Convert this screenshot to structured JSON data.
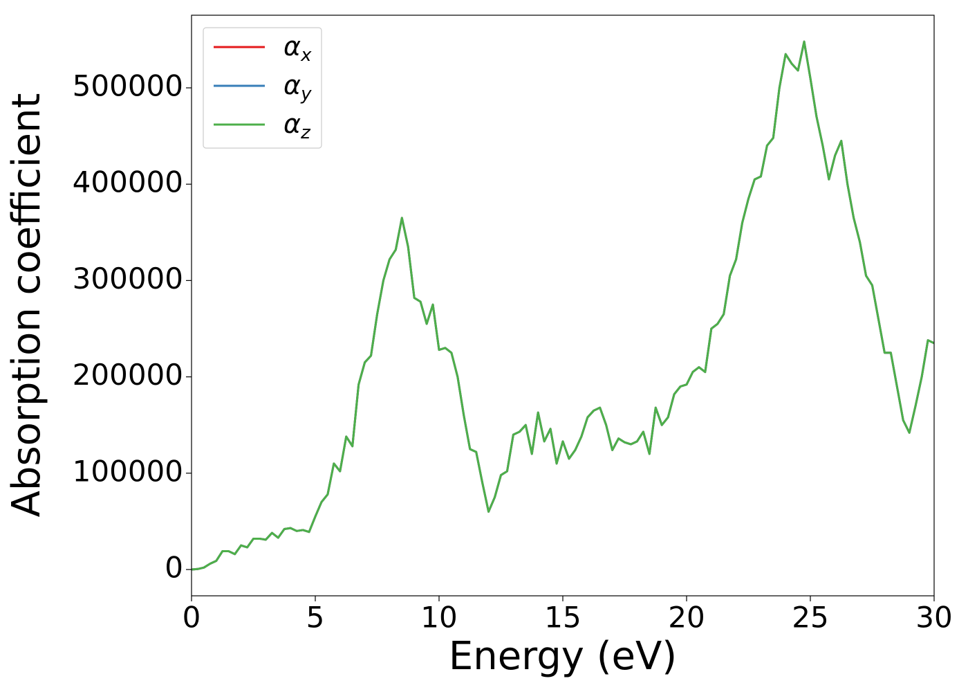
{
  "chart_data": {
    "type": "line",
    "xlabel": "Energy (eV)",
    "ylabel": "Absorption coefficient",
    "x": [
      0,
      0.25,
      0.5,
      0.75,
      1,
      1.25,
      1.5,
      1.75,
      2,
      2.25,
      2.5,
      2.75,
      3,
      3.25,
      3.5,
      3.75,
      4,
      4.25,
      4.5,
      4.75,
      5,
      5.25,
      5.5,
      5.75,
      6,
      6.25,
      6.5,
      6.75,
      7,
      7.25,
      7.5,
      7.75,
      8,
      8.25,
      8.5,
      8.75,
      9,
      9.25,
      9.5,
      9.75,
      10,
      10.25,
      10.5,
      10.75,
      11,
      11.25,
      11.5,
      11.75,
      12,
      12.25,
      12.5,
      12.75,
      13,
      13.25,
      13.5,
      13.75,
      14,
      14.25,
      14.5,
      14.75,
      15,
      15.25,
      15.5,
      15.75,
      16,
      16.25,
      16.5,
      16.75,
      17,
      17.25,
      17.5,
      17.75,
      18,
      18.25,
      18.5,
      18.75,
      19,
      19.25,
      19.5,
      19.75,
      20,
      20.25,
      20.5,
      20.75,
      21,
      21.25,
      21.5,
      21.75,
      22,
      22.25,
      22.5,
      22.75,
      23,
      23.25,
      23.5,
      23.75,
      24,
      24.25,
      24.5,
      24.75,
      25,
      25.25,
      25.5,
      25.75,
      26,
      26.25,
      26.5,
      26.75,
      27,
      27.25,
      27.5,
      27.75,
      28,
      28.25,
      28.5,
      28.75,
      29,
      29.25,
      29.5,
      29.75,
      30
    ],
    "series": [
      {
        "name": "αx",
        "color": "#e41a1c",
        "values": [
          0,
          500,
          2000,
          6000,
          9000,
          19000,
          19000,
          16000,
          25000,
          23000,
          32000,
          32000,
          31000,
          38000,
          33000,
          42000,
          43000,
          40000,
          41000,
          39000,
          55000,
          70000,
          78000,
          110000,
          102000,
          138000,
          128000,
          192000,
          215000,
          222000,
          265000,
          300000,
          322000,
          332000,
          365000,
          335000,
          282000,
          278000,
          255000,
          275000,
          228000,
          230000,
          225000,
          200000,
          160000,
          125000,
          122000,
          90000,
          60000,
          75000,
          98000,
          102000,
          140000,
          143000,
          150000,
          120000,
          163000,
          133000,
          146000,
          110000,
          133000,
          115000,
          124000,
          138000,
          158000,
          165000,
          168000,
          150000,
          124000,
          136000,
          132000,
          130000,
          133000,
          143000,
          120000,
          168000,
          150000,
          158000,
          182000,
          190000,
          192000,
          205000,
          210000,
          205000,
          250000,
          255000,
          265000,
          305000,
          322000,
          360000,
          385000,
          405000,
          408000,
          440000,
          448000,
          500000,
          535000,
          525000,
          518000,
          548000,
          510000,
          470000,
          440000,
          405000,
          430000,
          445000,
          400000,
          365000,
          340000,
          305000,
          295000,
          260000,
          225000,
          225000,
          190000,
          155000,
          142000,
          170000,
          200000,
          238000,
          235000
        ]
      },
      {
        "name": "αy",
        "color": "#377eb8",
        "values": [
          0,
          500,
          2000,
          6000,
          9000,
          19000,
          19000,
          16000,
          25000,
          23000,
          32000,
          32000,
          31000,
          38000,
          33000,
          42000,
          43000,
          40000,
          41000,
          39000,
          55000,
          70000,
          78000,
          110000,
          102000,
          138000,
          128000,
          192000,
          215000,
          222000,
          265000,
          300000,
          322000,
          332000,
          365000,
          335000,
          282000,
          278000,
          255000,
          275000,
          228000,
          230000,
          225000,
          200000,
          160000,
          125000,
          122000,
          90000,
          60000,
          75000,
          98000,
          102000,
          140000,
          143000,
          150000,
          120000,
          163000,
          133000,
          146000,
          110000,
          133000,
          115000,
          124000,
          138000,
          158000,
          165000,
          168000,
          150000,
          124000,
          136000,
          132000,
          130000,
          133000,
          143000,
          120000,
          168000,
          150000,
          158000,
          182000,
          190000,
          192000,
          205000,
          210000,
          205000,
          250000,
          255000,
          265000,
          305000,
          322000,
          360000,
          385000,
          405000,
          408000,
          440000,
          448000,
          500000,
          535000,
          525000,
          518000,
          548000,
          510000,
          470000,
          440000,
          405000,
          430000,
          445000,
          400000,
          365000,
          340000,
          305000,
          295000,
          260000,
          225000,
          225000,
          190000,
          155000,
          142000,
          170000,
          200000,
          238000,
          235000
        ]
      },
      {
        "name": "αz",
        "color": "#4daf4a",
        "values": [
          0,
          500,
          2000,
          6000,
          9000,
          19000,
          19000,
          16000,
          25000,
          23000,
          32000,
          32000,
          31000,
          38000,
          33000,
          42000,
          43000,
          40000,
          41000,
          39000,
          55000,
          70000,
          78000,
          110000,
          102000,
          138000,
          128000,
          192000,
          215000,
          222000,
          265000,
          300000,
          322000,
          332000,
          365000,
          335000,
          282000,
          278000,
          255000,
          275000,
          228000,
          230000,
          225000,
          200000,
          160000,
          125000,
          122000,
          90000,
          60000,
          75000,
          98000,
          102000,
          140000,
          143000,
          150000,
          120000,
          163000,
          133000,
          146000,
          110000,
          133000,
          115000,
          124000,
          138000,
          158000,
          165000,
          168000,
          150000,
          124000,
          136000,
          132000,
          130000,
          133000,
          143000,
          120000,
          168000,
          150000,
          158000,
          182000,
          190000,
          192000,
          205000,
          210000,
          205000,
          250000,
          255000,
          265000,
          305000,
          322000,
          360000,
          385000,
          405000,
          408000,
          440000,
          448000,
          500000,
          535000,
          525000,
          518000,
          548000,
          510000,
          470000,
          440000,
          405000,
          430000,
          445000,
          400000,
          365000,
          340000,
          305000,
          295000,
          260000,
          225000,
          225000,
          190000,
          155000,
          142000,
          170000,
          200000,
          238000,
          235000
        ]
      }
    ],
    "xlim": [
      0,
      30
    ],
    "xticks": [
      0,
      5,
      10,
      15,
      20,
      25,
      30
    ],
    "ylim": [
      -27300,
      575400
    ],
    "yticks": [
      0,
      100000,
      200000,
      300000,
      400000,
      500000
    ],
    "legend": "upper left",
    "grid": false
  }
}
